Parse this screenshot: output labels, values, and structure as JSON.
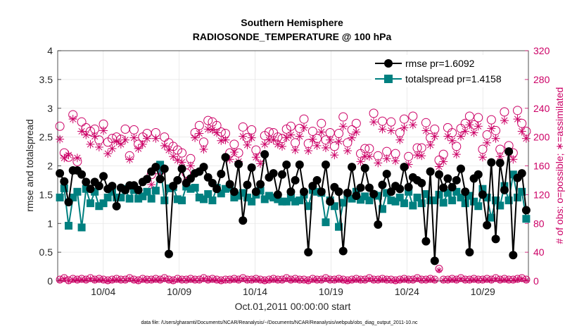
{
  "chart_data": {
    "type": "line",
    "title": [
      "Southern Hemisphere",
      "RADIOSONDE_TEMPERATURE @ 100 hPa"
    ],
    "xlabel": "Oct.01,2011 00:00:00 start",
    "ylabel_left": "rmse and totalspread",
    "ylabel_right": "# of obs: o=possible; ∗=assimilated",
    "footnote": "data file: /Users/gharamti/Documents/NCAR/Reanalysis/~/Documents/NCAR/Reanalysis/webpub/obs_diag_output_2011-10.nc",
    "x_unit": "days since Oct.01,2011 00:00:00",
    "xlim": [
      0,
      31
    ],
    "x_ticks": [
      {
        "x": 3,
        "label": "10/04"
      },
      {
        "x": 8,
        "label": "10/09"
      },
      {
        "x": 13,
        "label": "10/14"
      },
      {
        "x": 18,
        "label": "10/19"
      },
      {
        "x": 23,
        "label": "10/24"
      },
      {
        "x": 28,
        "label": "10/29"
      }
    ],
    "ylim_left": [
      0,
      4
    ],
    "y_ticks_left": [
      "0",
      "0.5",
      "1",
      "1.5",
      "2",
      "2.5",
      "3",
      "3.5",
      "4"
    ],
    "ylim_right": [
      0,
      320
    ],
    "y_ticks_right": [
      "0",
      "40",
      "80",
      "120",
      "160",
      "200",
      "240",
      "280",
      "320"
    ],
    "grid": true,
    "legend_position": "top-right",
    "colors": {
      "rmse": "#000000",
      "totalspread": "#008080",
      "obs": "#cc0066"
    },
    "series": [
      {
        "name": "rmse pr=1.6092",
        "axis": "left",
        "marker": "circle",
        "values": [
          1.87,
          1.73,
          1.37,
          1.92,
          1.92,
          1.85,
          1.72,
          1.6,
          1.72,
          1.65,
          1.82,
          1.6,
          1.65,
          1.3,
          1.62,
          1.58,
          1.66,
          1.66,
          1.58,
          1.72,
          1.77,
          1.9,
          1.98,
          1.77,
          1.95,
          0.47,
          1.65,
          1.75,
          1.95,
          1.7,
          1.78,
          1.87,
          1.9,
          1.98,
          1.8,
          1.7,
          1.6,
          1.86,
          2.15,
          1.68,
          1.55,
          2.03,
          1.05,
          1.67,
          1.97,
          1.55,
          1.68,
          2.2,
          1.8,
          1.87,
          1.5,
          1.85,
          2.02,
          1.55,
          1.75,
          2.02,
          1.55,
          0.5,
          1.65,
          1.75,
          1.55,
          2.02,
          1.38,
          1.63,
          1.55,
          0.52,
          1.53,
          1.98,
          1.48,
          1.62,
          1.96,
          1.62,
          1.51,
          0.98,
          1.67,
          1.86,
          1.55,
          1.65,
          1.6,
          1.98,
          1.63,
          1.8,
          1.75,
          1.7,
          0.69,
          1.9,
          0.35,
          1.85,
          1.62,
          1.78,
          1.63,
          1.75,
          1.95,
          1.55,
          0.5,
          1.78,
          1.85,
          1.5,
          0.97,
          2.06,
          0.73,
          2.05,
          1.58,
          2.25,
          0.45,
          1.79,
          1.87,
          1.23
        ]
      },
      {
        "name": "totalspread pr=1.4158",
        "axis": "left",
        "marker": "square",
        "values": [
          1.45,
          1.61,
          0.96,
          1.45,
          1.55,
          0.93,
          1.6,
          1.35,
          1.55,
          1.3,
          1.35,
          1.45,
          1.55,
          1.45,
          1.45,
          1.6,
          1.43,
          1.58,
          1.43,
          1.47,
          1.55,
          1.43,
          1.57,
          2.02,
          1.4,
          1.61,
          1.63,
          1.42,
          1.4,
          1.64,
          1.6,
          1.62,
          1.45,
          1.42,
          1.51,
          1.4,
          1.62,
          1.52,
          1.6,
          1.62,
          1.45,
          1.48,
          1.53,
          1.45,
          1.38,
          1.5,
          1.57,
          1.42,
          1.48,
          1.45,
          1.42,
          1.38,
          1.38,
          1.45,
          1.38,
          1.4,
          1.5,
          1.3,
          1.58,
          1.55,
          1.53,
          1.02,
          1.4,
          1.3,
          0.94,
          1.36,
          1.5,
          1.43,
          1.55,
          1.41,
          1.47,
          1.4,
          1.5,
          1.48,
          1.25,
          1.53,
          1.4,
          1.38,
          1.45,
          1.35,
          1.55,
          1.31,
          1.45,
          1.35,
          1.51,
          1.4,
          1.4,
          1.5,
          1.36,
          1.53,
          1.4,
          1.55,
          1.45,
          1.35,
          1.48,
          1.38,
          1.3,
          1.6,
          1.45,
          1.1,
          1.4,
          1.31,
          1.65,
          1.4,
          1.85,
          1.45,
          1.55,
          1.08
        ]
      },
      {
        "name": "obs possible",
        "axis": "right",
        "marker": "open-circle",
        "values": [
          215,
          178,
          172,
          231,
          166,
          221,
          213,
          208,
          211,
          196,
          218,
          193,
          198,
          200,
          197,
          211,
          174,
          210,
          190,
          200,
          205,
          148,
          206,
          159,
          200,
          192,
          187,
          182,
          178,
          150,
          170,
          206,
          216,
          193,
          223,
          221,
          216,
          207,
          205,
          178,
          190,
          178,
          214,
          199,
          210,
          182,
          172,
          202,
          207,
          206,
          200,
          198,
          211,
          215,
          192,
          212,
          225,
          191,
          208,
          198,
          219,
          196,
          206,
          187,
          205,
          228,
          192,
          210,
          219,
          177,
          184,
          184,
          233,
          174,
          222,
          180,
          221,
          177,
          206,
          225,
          173,
          229,
          185,
          185,
          220,
          199,
          211,
          168,
          176,
          213,
          206,
          187,
          212,
          219,
          229,
          217,
          227,
          183,
          203,
          224,
          209,
          183,
          235,
          188,
          178,
          237,
          219,
          208
        ]
      },
      {
        "name": "obs assimilated",
        "axis": "right",
        "marker": "asterisk",
        "values": [
          197,
          171,
          175,
          225,
          171,
          208,
          203,
          190,
          201,
          186,
          209,
          177,
          184,
          194,
          190,
          196,
          169,
          199,
          184,
          190,
          198,
          134,
          198,
          149,
          188,
          182,
          173,
          168,
          165,
          138,
          160,
          199,
          205,
          183,
          211,
          210,
          206,
          195,
          196,
          169,
          179,
          166,
          201,
          189,
          199,
          172,
          163,
          190,
          196,
          196,
          190,
          187,
          199,
          203,
          182,
          201,
          213,
          181,
          197,
          188,
          207,
          185,
          196,
          175,
          194,
          215,
          181,
          199,
          207,
          166,
          173,
          173,
          221,
          164,
          211,
          170,
          209,
          167,
          196,
          213,
          162,
          217,
          175,
          174,
          209,
          189,
          201,
          159,
          166,
          201,
          195,
          176,
          201,
          208,
          217,
          206,
          215,
          172,
          192,
          212,
          198,
          173,
          223,
          178,
          169,
          225,
          208,
          198
        ]
      }
    ],
    "obs_bottom": {
      "possible_values": [
        2,
        4,
        1,
        3,
        2,
        3,
        2,
        4,
        2,
        3,
        2,
        1,
        2,
        3,
        2,
        2,
        4,
        2,
        1,
        3,
        2,
        2,
        3,
        2,
        4,
        2,
        1,
        3,
        2,
        2,
        3,
        2,
        2,
        4,
        2,
        3,
        2,
        1,
        2,
        2,
        3,
        2,
        4,
        2,
        2,
        3,
        2,
        1,
        2,
        3,
        2,
        2,
        4,
        2,
        3,
        2,
        2,
        1,
        3,
        2,
        2,
        4,
        2,
        2,
        3,
        2,
        1,
        2,
        3,
        2,
        2,
        4,
        2,
        2,
        3,
        2,
        2,
        1,
        2,
        3,
        2,
        2,
        4,
        2,
        2,
        3,
        2,
        17,
        2,
        2,
        3,
        2,
        4,
        2,
        2,
        3,
        2,
        2,
        3,
        2,
        4,
        2,
        3,
        2,
        2,
        3,
        4,
        2
      ],
      "assimilated_values": [
        1,
        3,
        0,
        2,
        1,
        2,
        1,
        3,
        1,
        2,
        1,
        0,
        1,
        2,
        1,
        1,
        3,
        1,
        0,
        2,
        1,
        1,
        2,
        1,
        3,
        1,
        0,
        2,
        1,
        1,
        2,
        1,
        1,
        3,
        1,
        2,
        1,
        0,
        1,
        1,
        2,
        1,
        3,
        1,
        1,
        2,
        1,
        0,
        1,
        2,
        1,
        1,
        3,
        1,
        2,
        1,
        1,
        0,
        2,
        1,
        1,
        3,
        1,
        1,
        2,
        1,
        0,
        1,
        2,
        1,
        1,
        3,
        1,
        1,
        2,
        1,
        1,
        0,
        1,
        2,
        1,
        1,
        3,
        1,
        1,
        2,
        1,
        15,
        1,
        1,
        2,
        1,
        3,
        1,
        1,
        2,
        1,
        1,
        2,
        1,
        3,
        1,
        2,
        1,
        1,
        2,
        3,
        1
      ]
    }
  }
}
